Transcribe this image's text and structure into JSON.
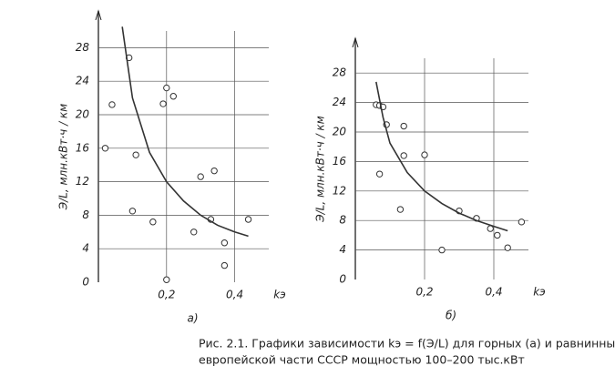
{
  "chart_data": [
    {
      "type": "scatter",
      "label": "а)",
      "xlabel": "kэ",
      "ylabel": "Э/L, млн.кВт·ч / км",
      "xlim": [
        0,
        0.5
      ],
      "ylim": [
        0,
        30
      ],
      "xticks": [
        {
          "value": 0.2,
          "label": "0,2"
        },
        {
          "value": 0.4,
          "label": "0,4"
        }
      ],
      "yticks": [
        0,
        4,
        8,
        12,
        16,
        20,
        24,
        28
      ],
      "grid": true,
      "color": "#333",
      "series": [
        {
          "x": [
            0.02,
            0.04,
            0.09,
            0.11,
            0.1,
            0.16,
            0.19,
            0.2,
            0.2,
            0.22,
            0.3,
            0.34,
            0.33,
            0.28,
            0.37,
            0.37,
            0.44
          ],
          "values": [
            16,
            21.2,
            26.8,
            15.2,
            8.5,
            7.2,
            21.3,
            23.2,
            0.3,
            22.2,
            12.6,
            13.3,
            7.5,
            6,
            4.7,
            2,
            7.5
          ],
          "mode": "points"
        },
        {
          "x": [
            0.07,
            0.1,
            0.15,
            0.2,
            0.25,
            0.3,
            0.35,
            0.4,
            0.44
          ],
          "values": [
            30.5,
            22,
            15.5,
            12,
            9.7,
            8,
            6.8,
            6,
            5.5
          ],
          "mode": "line"
        }
      ]
    },
    {
      "type": "scatter",
      "label": "б)",
      "xlabel": "kэ",
      "ylabel": "Э/L, млн.кВт·ч / км",
      "xlim": [
        0,
        0.5
      ],
      "ylim": [
        0,
        30
      ],
      "xticks": [
        {
          "value": 0.2,
          "label": "0,2"
        },
        {
          "value": 0.4,
          "label": "0,4"
        }
      ],
      "yticks": [
        0,
        4,
        8,
        12,
        16,
        20,
        24,
        28
      ],
      "grid": true,
      "color": "#333",
      "series": [
        {
          "x": [
            0.06,
            0.07,
            0.08,
            0.09,
            0.07,
            0.14,
            0.14,
            0.2,
            0.13,
            0.25,
            0.3,
            0.35,
            0.39,
            0.41,
            0.44,
            0.48
          ],
          "values": [
            23.7,
            23.6,
            23.4,
            21,
            14.3,
            20.8,
            16.8,
            16.9,
            9.5,
            4,
            9.3,
            8.3,
            6.9,
            6,
            4.3,
            7.8
          ],
          "mode": "points"
        },
        {
          "x": [
            0.06,
            0.08,
            0.1,
            0.15,
            0.2,
            0.25,
            0.3,
            0.35,
            0.4,
            0.44
          ],
          "values": [
            26.8,
            22,
            18.5,
            14.5,
            12,
            10.3,
            9,
            8,
            7.2,
            6.6
          ],
          "mode": "line"
        }
      ]
    }
  ],
  "caption": [
    "Рис. 2.1. Графики зависимости kэ = f(Э/L) для горных (а) и равнинных (б) рек",
    "европейской части СССР мощностью 100–200 тыс.кВт"
  ]
}
